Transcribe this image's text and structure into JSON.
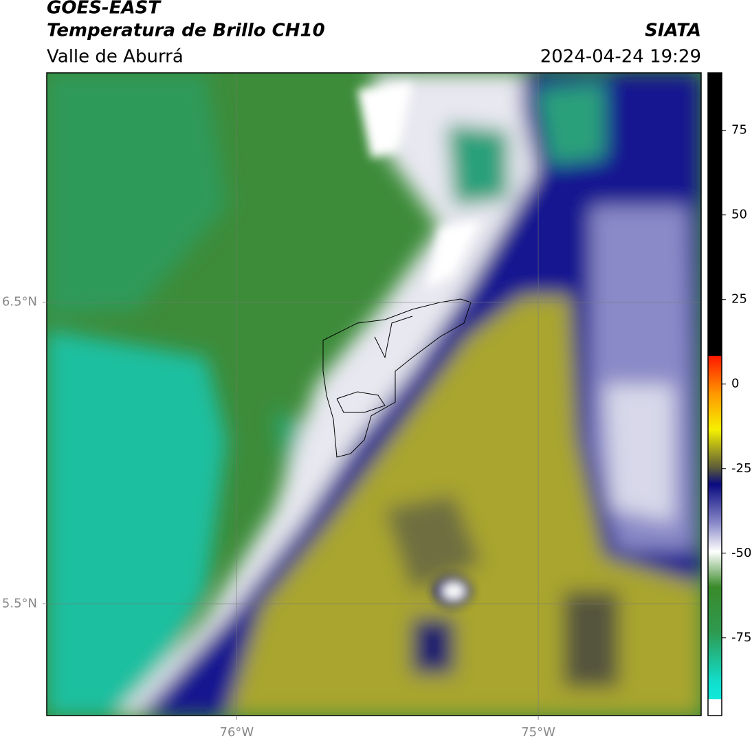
{
  "header": {
    "title": "GOES-EAST",
    "subtitle": "Temperatura de Brillo CH10",
    "region": "Valle de Aburrá",
    "source": "SIATA",
    "datetime": "2024-04-24 19:29"
  },
  "map": {
    "lonlim": [
      -76.63,
      -74.46
    ],
    "latlim": [
      5.13,
      7.26
    ],
    "lon_ticks": [
      {
        "value": -76,
        "label": "76°W"
      },
      {
        "value": -75,
        "label": "75°W"
      }
    ],
    "lat_ticks": [
      {
        "value": 6.5,
        "label": "6.5°N"
      },
      {
        "value": 5.5,
        "label": "5.5°N"
      }
    ]
  },
  "colorbar": {
    "lim": [
      -98,
      92
    ],
    "ticks": [
      75,
      50,
      25,
      0,
      -25,
      -50,
      -75
    ]
  }
}
